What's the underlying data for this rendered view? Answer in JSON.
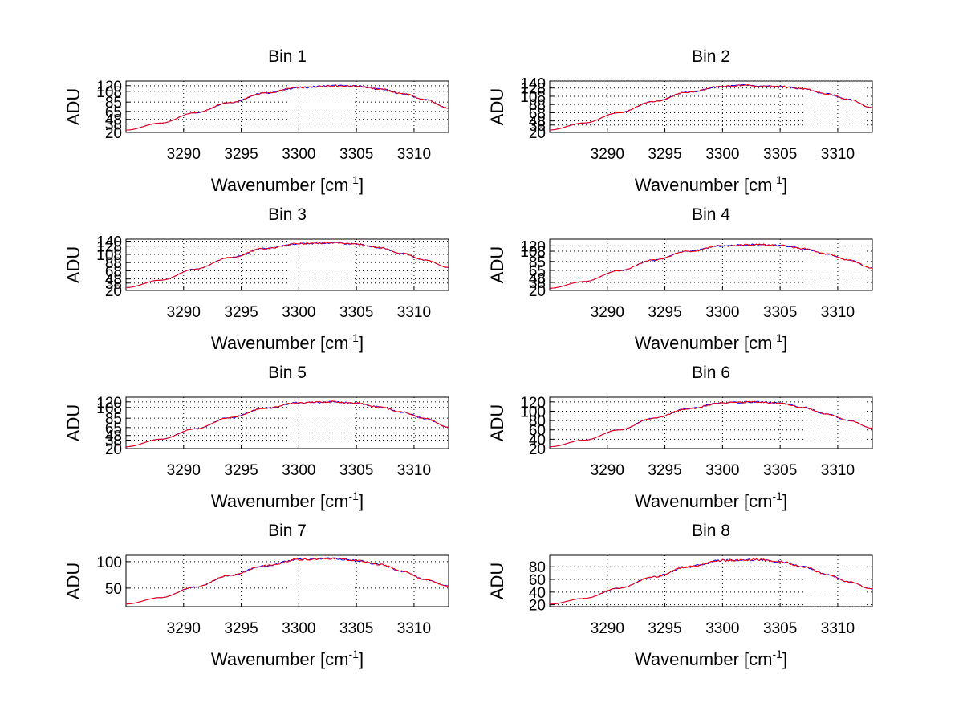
{
  "chart_data": [
    {
      "type": "line",
      "title": "Bin 1",
      "xlabel": "Wavenumber [cm",
      "xlabel_sup": "-1",
      "xlabel_close": "]",
      "ylabel": "ADU",
      "xlim": [
        3285,
        3313
      ],
      "ylim": [
        20,
        130
      ],
      "xticks": [
        3290,
        3295,
        3300,
        3305,
        3310
      ],
      "yticks": [
        20,
        38,
        48,
        65,
        85,
        108,
        120
      ],
      "ytick_labels": [
        "20",
        "38",
        "48",
        "65",
        "85",
        "108",
        "120"
      ],
      "x": [
        3285,
        3288,
        3291,
        3294,
        3297,
        3300,
        3303,
        3305,
        3307,
        3309,
        3311,
        3313
      ],
      "series": [
        {
          "name": "blue",
          "color": "#0000ff",
          "values": [
            25,
            40,
            62,
            84,
            104,
            116,
            120,
            119,
            113,
            103,
            90,
            72
          ]
        },
        {
          "name": "red",
          "color": "#ff0000",
          "values": [
            25,
            40,
            62,
            84,
            104,
            116,
            120,
            119,
            113,
            103,
            90,
            72
          ]
        }
      ]
    },
    {
      "type": "line",
      "title": "Bin 2",
      "xlabel": "Wavenumber [cm",
      "xlabel_sup": "-1",
      "xlabel_close": "]",
      "ylabel": "ADU",
      "xlim": [
        3285,
        3313
      ],
      "ylim": [
        20,
        145
      ],
      "xticks": [
        3290,
        3295,
        3300,
        3305,
        3310
      ],
      "yticks": [
        20,
        38,
        48,
        68,
        88,
        108,
        128,
        140
      ],
      "ytick_labels": [
        "20",
        "38",
        "48",
        "68",
        "88",
        "108",
        "128",
        "140"
      ],
      "x": [
        3285,
        3288,
        3291,
        3294,
        3297,
        3300,
        3302,
        3303,
        3305,
        3307,
        3309,
        3311,
        3313
      ],
      "series": [
        {
          "name": "blue",
          "color": "#0000ff",
          "values": [
            26,
            43,
            68,
            95,
            118,
            132,
            135,
            132,
            132,
            126,
            114,
            100,
            80
          ]
        },
        {
          "name": "red",
          "color": "#ff0000",
          "values": [
            26,
            43,
            68,
            95,
            118,
            132,
            135,
            132,
            132,
            126,
            114,
            100,
            80
          ]
        }
      ]
    },
    {
      "type": "line",
      "title": "Bin 3",
      "xlabel": "Wavenumber [cm",
      "xlabel_sup": "-1",
      "xlabel_close": "]",
      "ylabel": "ADU",
      "xlim": [
        3285,
        3313
      ],
      "ylim": [
        20,
        145
      ],
      "xticks": [
        3290,
        3295,
        3300,
        3305,
        3310
      ],
      "yticks": [
        20,
        38,
        48,
        68,
        88,
        108,
        128,
        140
      ],
      "ytick_labels": [
        "20",
        "38",
        "48",
        "68",
        "88",
        "108",
        "128",
        "140"
      ],
      "x": [
        3285,
        3288,
        3291,
        3294,
        3297,
        3300,
        3303,
        3305,
        3307,
        3309,
        3311,
        3313
      ],
      "series": [
        {
          "name": "blue",
          "color": "#0000ff",
          "values": [
            27,
            45,
            72,
            100,
            122,
            134,
            136,
            133,
            124,
            110,
            94,
            76
          ]
        },
        {
          "name": "red",
          "color": "#ff0000",
          "values": [
            27,
            45,
            72,
            100,
            122,
            134,
            136,
            133,
            124,
            110,
            94,
            76
          ]
        }
      ]
    },
    {
      "type": "line",
      "title": "Bin 4",
      "xlabel": "Wavenumber [cm",
      "xlabel_sup": "-1",
      "xlabel_close": "]",
      "ylabel": "ADU",
      "xlim": [
        3285,
        3313
      ],
      "ylim": [
        20,
        135
      ],
      "xticks": [
        3290,
        3295,
        3300,
        3305,
        3310
      ],
      "yticks": [
        20,
        38,
        48,
        65,
        85,
        108,
        120
      ],
      "ytick_labels": [
        "20",
        "38",
        "48",
        "65",
        "85",
        "108",
        "120"
      ],
      "x": [
        3285,
        3288,
        3291,
        3294,
        3297,
        3300,
        3303,
        3305,
        3307,
        3309,
        3311,
        3313
      ],
      "series": [
        {
          "name": "blue",
          "color": "#0000ff",
          "values": [
            25,
            40,
            64,
            88,
            108,
            120,
            123,
            121,
            114,
            102,
            88,
            70
          ]
        },
        {
          "name": "red",
          "color": "#ff0000",
          "values": [
            25,
            40,
            64,
            88,
            108,
            120,
            123,
            121,
            114,
            102,
            88,
            70
          ]
        }
      ]
    },
    {
      "type": "line",
      "title": "Bin 5",
      "xlabel": "Wavenumber [cm",
      "xlabel_sup": "-1",
      "xlabel_close": "]",
      "ylabel": "ADU",
      "xlim": [
        3285,
        3313
      ],
      "ylim": [
        20,
        130
      ],
      "xticks": [
        3290,
        3295,
        3300,
        3305,
        3310
      ],
      "yticks": [
        20,
        38,
        48,
        65,
        85,
        108,
        120
      ],
      "ytick_labels": [
        "20",
        "38",
        "48",
        "65",
        "85",
        "108",
        "120"
      ],
      "x": [
        3285,
        3288,
        3291,
        3294,
        3297,
        3300,
        3303,
        3305,
        3307,
        3309,
        3311,
        3313
      ],
      "series": [
        {
          "name": "blue",
          "color": "#0000ff",
          "values": [
            24,
            40,
            62,
            86,
            106,
            118,
            120,
            117,
            109,
            98,
            84,
            66
          ]
        },
        {
          "name": "red",
          "color": "#ff0000",
          "values": [
            24,
            40,
            62,
            86,
            106,
            118,
            120,
            117,
            109,
            98,
            84,
            66
          ]
        }
      ]
    },
    {
      "type": "line",
      "title": "Bin 6",
      "xlabel": "Wavenumber [cm",
      "xlabel_sup": "-1",
      "xlabel_close": "]",
      "ylabel": "ADU",
      "xlim": [
        3285,
        3313
      ],
      "ylim": [
        20,
        130
      ],
      "xticks": [
        3290,
        3295,
        3300,
        3305,
        3310
      ],
      "yticks": [
        20,
        40,
        60,
        80,
        100,
        120
      ],
      "ytick_labels": [
        "20",
        "40",
        "60",
        "80",
        "100",
        "120"
      ],
      "x": [
        3285,
        3288,
        3291,
        3294,
        3297,
        3300,
        3303,
        3305,
        3307,
        3309,
        3311,
        3313
      ],
      "series": [
        {
          "name": "blue",
          "color": "#0000ff",
          "values": [
            24,
            38,
            60,
            85,
            105,
            118,
            120,
            117,
            108,
            94,
            80,
            64
          ]
        },
        {
          "name": "red",
          "color": "#ff0000",
          "values": [
            24,
            38,
            60,
            85,
            105,
            118,
            120,
            117,
            108,
            94,
            80,
            64
          ]
        }
      ]
    },
    {
      "type": "line",
      "title": "Bin 7",
      "xlabel": "Wavenumber [cm",
      "xlabel_sup": "-1",
      "xlabel_close": "]",
      "ylabel": "ADU",
      "xlim": [
        3285,
        3313
      ],
      "ylim": [
        15,
        112
      ],
      "xticks": [
        3290,
        3295,
        3300,
        3305,
        3310
      ],
      "yticks": [
        50,
        100
      ],
      "ytick_labels": [
        "50",
        "100"
      ],
      "x": [
        3285,
        3288,
        3291,
        3294,
        3297,
        3300,
        3303,
        3305,
        3307,
        3309,
        3311,
        3313
      ],
      "series": [
        {
          "name": "blue",
          "color": "#0000ff",
          "values": [
            20,
            32,
            52,
            74,
            92,
            104,
            106,
            102,
            95,
            82,
            66,
            54
          ]
        },
        {
          "name": "red",
          "color": "#ff0000",
          "values": [
            20,
            32,
            52,
            74,
            92,
            104,
            106,
            102,
            95,
            82,
            66,
            54
          ]
        }
      ]
    },
    {
      "type": "line",
      "title": "Bin 8",
      "xlabel": "Wavenumber [cm",
      "xlabel_sup": "-1",
      "xlabel_close": "]",
      "ylabel": "ADU",
      "xlim": [
        3285,
        3313
      ],
      "ylim": [
        17,
        98
      ],
      "xticks": [
        3290,
        3295,
        3300,
        3305,
        3310
      ],
      "yticks": [
        20,
        40,
        60,
        80
      ],
      "ytick_labels": [
        "20",
        "40",
        "60",
        "80"
      ],
      "x": [
        3285,
        3288,
        3291,
        3294,
        3297,
        3300,
        3303,
        3305,
        3307,
        3309,
        3311,
        3313
      ],
      "series": [
        {
          "name": "blue",
          "color": "#0000ff",
          "values": [
            21,
            30,
            46,
            64,
            80,
            90,
            91,
            88,
            80,
            68,
            56,
            45
          ]
        },
        {
          "name": "red",
          "color": "#ff0000",
          "values": [
            21,
            30,
            46,
            64,
            80,
            90,
            91,
            88,
            80,
            68,
            56,
            45
          ]
        }
      ]
    }
  ]
}
